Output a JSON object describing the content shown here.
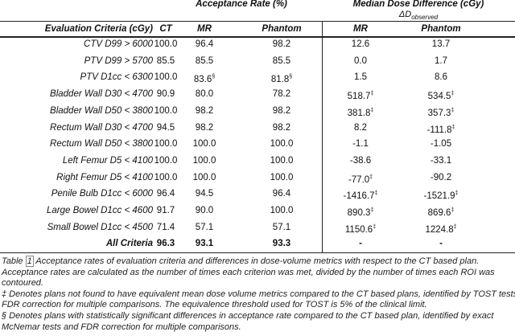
{
  "table": {
    "group_headers": {
      "acceptance": "Acceptance Rate (%)",
      "dose": "Median Dose Difference (cGy)",
      "delta": {
        "main": "ΔD",
        "sub": "observed"
      }
    },
    "columns": [
      "Evaluation Criteria (cGy)",
      "CT",
      "MR",
      "Phantom",
      "MR",
      "Phantom"
    ],
    "rows": [
      [
        "CTV D99 > 6000",
        "100.0",
        "96.4",
        "98.2",
        "12.6",
        "13.7"
      ],
      [
        "PTV D99 > 5700",
        "85.5",
        "85.5",
        "85.5",
        "0.0",
        "1.7"
      ],
      [
        "PTV D1cc < 6300",
        "100.0",
        {
          "text": "83.6",
          "mark": "§"
        },
        {
          "text": "81.8",
          "mark": "§"
        },
        "1.5",
        "8.6"
      ],
      [
        "Bladder Wall D30 < 4700",
        "90.9",
        "80.0",
        "78.2",
        {
          "text": "518.7",
          "mark": "‡"
        },
        {
          "text": "534.5",
          "mark": "‡"
        }
      ],
      [
        "Bladder Wall D50 < 3800",
        "100.0",
        "98.2",
        "98.2",
        {
          "text": "381.8",
          "mark": "‡"
        },
        {
          "text": "357.3",
          "mark": "‡"
        }
      ],
      [
        "Rectum Wall D30 < 4700",
        "94.5",
        "98.2",
        "98.2",
        "8.2",
        {
          "text": "-111.8",
          "mark": "‡"
        }
      ],
      [
        "Rectum Wall D50 < 3800",
        "100.0",
        "100.0",
        "100.0",
        "-1.1",
        "-1.05"
      ],
      [
        "Left Femur D5 < 4100",
        "100.0",
        "100.0",
        "100.0",
        "-38.6",
        "-33.1"
      ],
      [
        "Right Femur D5 < 4100",
        "100.0",
        "100.0",
        "100.0",
        {
          "text": "-77.0",
          "mark": "‡"
        },
        "-90.2"
      ],
      [
        "Penile Bulb D1cc < 6000",
        "96.4",
        "94.5",
        "96.4",
        {
          "text": "-1416.7",
          "mark": "‡"
        },
        {
          "text": "-1521.9",
          "mark": "‡"
        }
      ],
      [
        "Large Bowel D1cc < 4600",
        "91.7",
        "90.0",
        "100.0",
        {
          "text": "890.3",
          "mark": "‡"
        },
        {
          "text": "869.6",
          "mark": "‡"
        }
      ],
      [
        "Small Bowel D1cc < 4500",
        "71.4",
        "57.1",
        "57.1",
        {
          "text": "1150.6",
          "mark": "‡"
        },
        {
          "text": "1224.8",
          "mark": "‡"
        }
      ],
      [
        "All Criteria",
        "96.3",
        "93.1",
        "93.3",
        "-",
        "-"
      ]
    ]
  },
  "caption": {
    "label": "Table",
    "number": "1",
    "first_line": "Acceptance rates of evaluation criteria and differences in dose-volume metrics with respect to the CT based plan.",
    "lines": [
      "Acceptance rates are calculated as the number of times each criterion was met, divided by the number of times each ROI was",
      "contoured.",
      "‡ Denotes plans not found to have equivalent mean dose volume metrics compared to the CT based plans, identified by TOST tests",
      "FDR correction for multiple comparisons. The equivalence threshold used for TOST is 5% of the clinical limit.",
      "§ Denotes plans with statistically significant differences in acceptance rate compared to the CT based plan, identified by exact",
      "McNemar tests and FDR correction for multiple comparisons."
    ]
  }
}
